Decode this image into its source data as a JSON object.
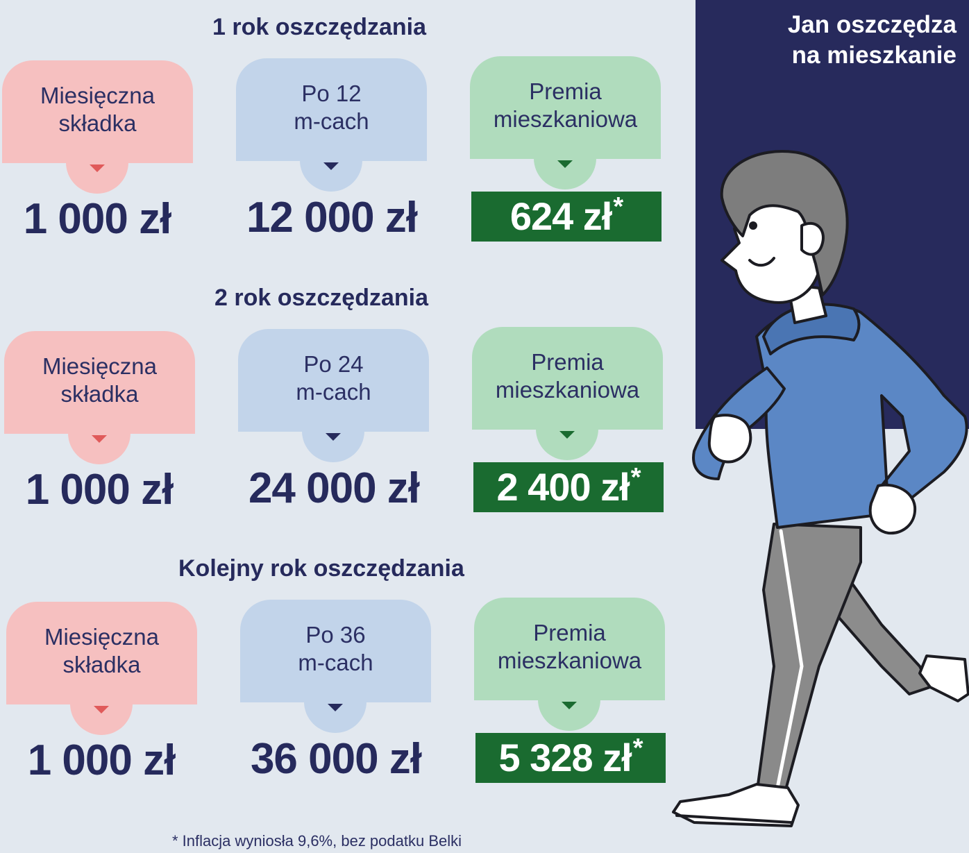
{
  "panel": {
    "title_line1": "Jan oszczędza",
    "title_line2": "na mieszkanie"
  },
  "sections": [
    {
      "title": "1 rok oszczędzania",
      "contribution_label_1": "Miesięczna",
      "contribution_label_2": "składka",
      "contribution_amount": "1 000 zł",
      "savings_label_1": "Po 12",
      "savings_label_2": "m-cach",
      "savings_amount": "12 000 zł",
      "premium_label_1": "Premia",
      "premium_label_2": "mieszkaniowa",
      "premium_amount": "624 zł",
      "premium_marker": "*"
    },
    {
      "title": "2 rok oszczędzania",
      "contribution_label_1": "Miesięczna",
      "contribution_label_2": "składka",
      "contribution_amount": "1 000 zł",
      "savings_label_1": "Po 24",
      "savings_label_2": "m-cach",
      "savings_amount": "24 000 zł",
      "premium_label_1": "Premia",
      "premium_label_2": "mieszkaniowa",
      "premium_amount": "2 400 zł",
      "premium_marker": "*"
    },
    {
      "title": "Kolejny rok oszczędzania",
      "contribution_label_1": "Miesięczna",
      "contribution_label_2": "składka",
      "contribution_amount": "1 000 zł",
      "savings_label_1": "Po 36",
      "savings_label_2": "m-cach",
      "savings_amount": "36 000 zł",
      "premium_label_1": "Premia",
      "premium_label_2": "mieszkaniowa",
      "premium_amount": "5 328 zł",
      "premium_marker": "*"
    }
  ],
  "footnote": "*  Inflacja wyniosła 9,6%, bez podatku Belki",
  "colors": {
    "navy": "#272a5c",
    "pink_card": "#f6c0c0",
    "blue_card": "#c2d4ea",
    "green_card": "#b0dcbd",
    "premium_green": "#1a6b30",
    "background": "#e2e8ef"
  },
  "illustration": "running-man-blue-hoodie"
}
